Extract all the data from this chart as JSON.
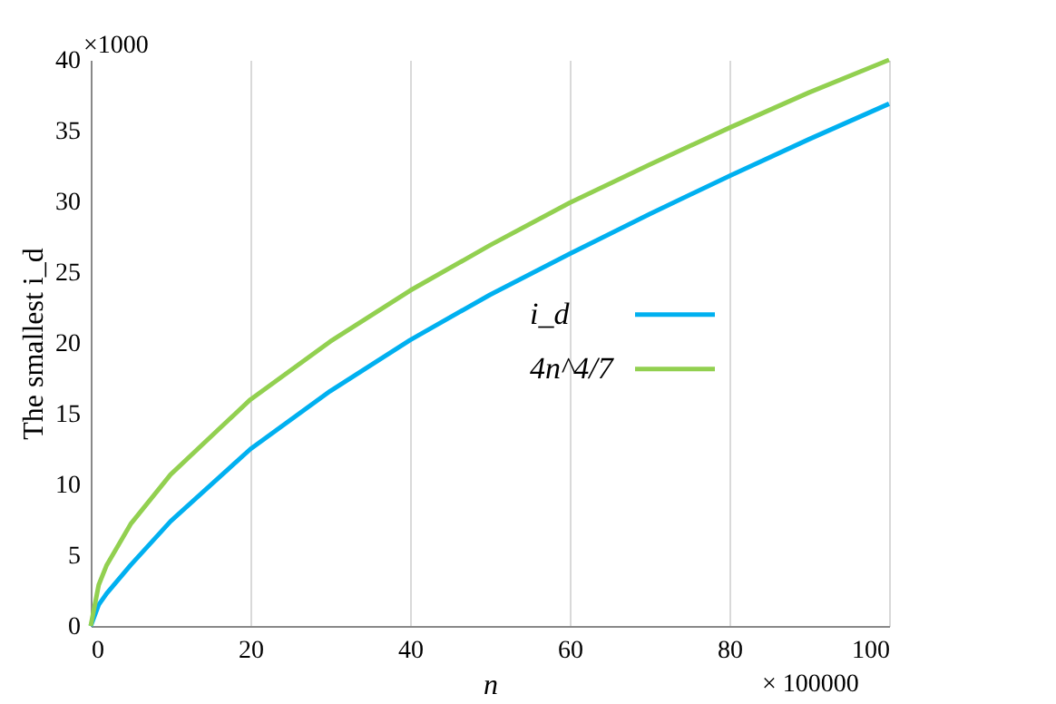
{
  "chart_data": {
    "type": "line",
    "ylabel": "The smallest i_d",
    "xlabel": "n",
    "annotations": [
      "×1000",
      "× 100000"
    ],
    "xlim": [
      0,
      100
    ],
    "xticks": [
      0,
      20,
      40,
      60,
      80,
      100
    ],
    "ylim": [
      0,
      40
    ],
    "yticks": [
      0,
      5,
      10,
      15,
      20,
      25,
      30,
      35,
      40
    ],
    "grid": "x",
    "legend": "center right",
    "marker": "none",
    "line_style": "solid",
    "x": [
      0,
      1,
      2,
      5,
      10,
      20,
      30,
      40,
      50,
      60,
      70,
      80,
      90,
      100
    ],
    "series": [
      {
        "name": "i_d",
        "color": "#00b0f0",
        "values": [
          0,
          1.5,
          2.3,
          4.3,
          7.4,
          12.5,
          16.6,
          20.2,
          23.4,
          26.3,
          29.1,
          31.8,
          34.4,
          36.9
        ]
      },
      {
        "name": "4n^4/7",
        "color": "#92d050",
        "values": [
          0,
          2.9,
          4.3,
          7.2,
          10.7,
          16.0,
          20.1,
          23.7,
          26.9,
          29.9,
          32.6,
          35.2,
          37.7,
          40.0
        ]
      }
    ]
  }
}
